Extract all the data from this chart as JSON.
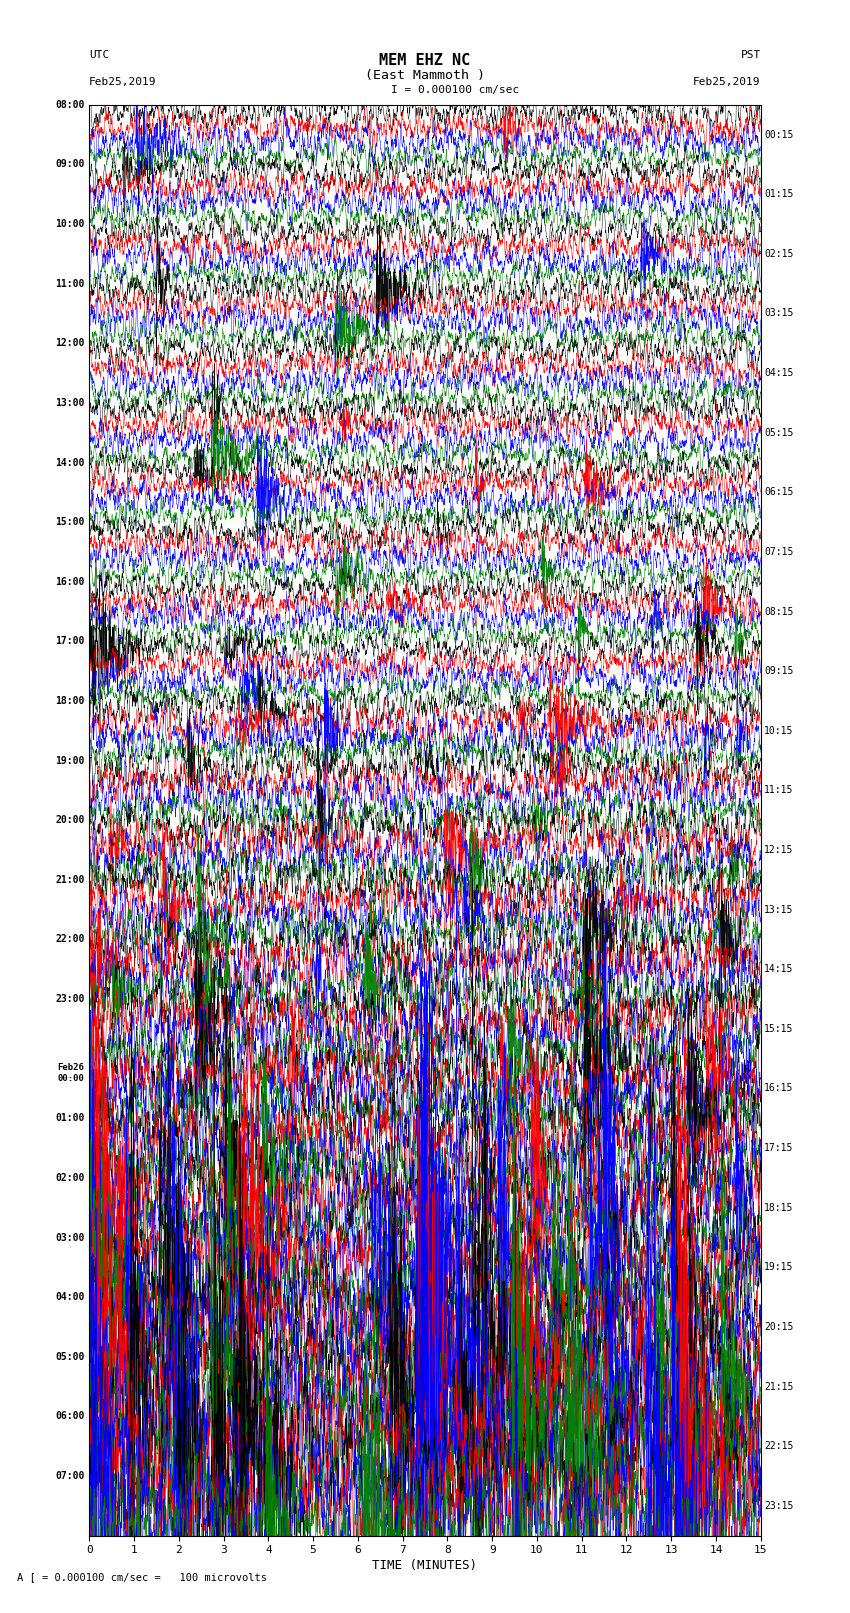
{
  "title_line1": "MEM EHZ NC",
  "title_line2": "(East Mammoth )",
  "scale_label": "I = 0.000100 cm/sec",
  "bottom_label": "A [ = 0.000100 cm/sec =   100 microvolts",
  "utc_label": "UTC\nFeb25,2019",
  "pst_label": "PST\nFeb25,2019",
  "xlabel": "TIME (MINUTES)",
  "left_times": [
    "08:00",
    "09:00",
    "10:00",
    "11:00",
    "12:00",
    "13:00",
    "14:00",
    "15:00",
    "16:00",
    "17:00",
    "18:00",
    "19:00",
    "20:00",
    "21:00",
    "22:00",
    "23:00",
    "Feb26\n00:00",
    "01:00",
    "02:00",
    "03:00",
    "04:00",
    "05:00",
    "06:00",
    "07:00"
  ],
  "right_times": [
    "00:15",
    "01:15",
    "02:15",
    "03:15",
    "04:15",
    "05:15",
    "06:15",
    "07:15",
    "08:15",
    "09:15",
    "10:15",
    "11:15",
    "12:15",
    "13:15",
    "14:15",
    "15:15",
    "16:15",
    "17:15",
    "18:15",
    "19:15",
    "20:15",
    "21:15",
    "22:15",
    "23:15"
  ],
  "n_rows": 24,
  "traces_per_row": 4,
  "colors": [
    "black",
    "red",
    "blue",
    "green"
  ],
  "bg_color": "white",
  "fig_width": 8.5,
  "fig_height": 16.13,
  "xlim": [
    0,
    15
  ],
  "xticks": [
    0,
    1,
    2,
    3,
    4,
    5,
    6,
    7,
    8,
    9,
    10,
    11,
    12,
    13,
    14,
    15
  ],
  "seed": 42,
  "dpi": 100
}
